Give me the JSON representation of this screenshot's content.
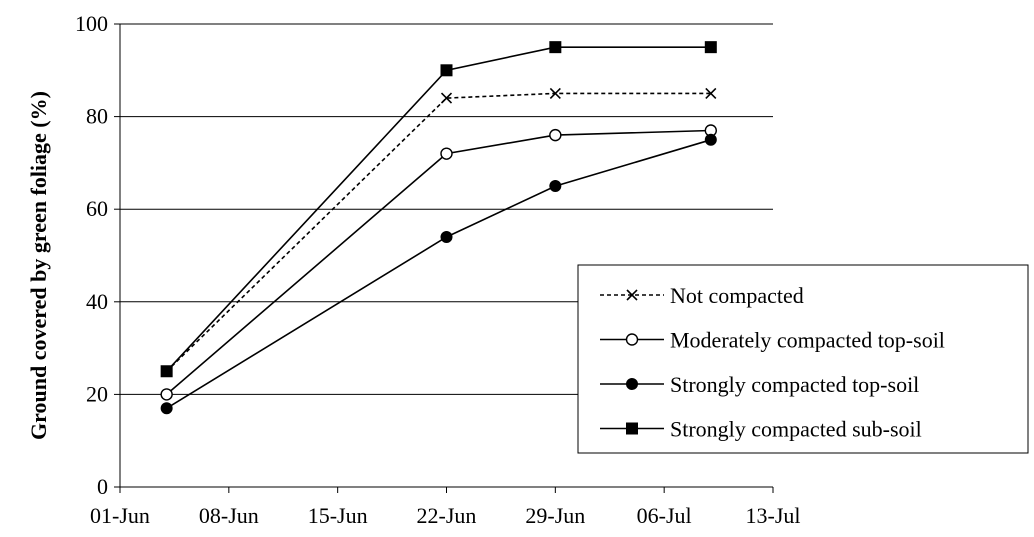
{
  "chart_data": {
    "type": "line",
    "title": "",
    "xlabel": "",
    "ylabel": "Ground covered by green foliage (%)",
    "ylim": [
      0,
      100
    ],
    "yticks": [
      0,
      20,
      40,
      60,
      80,
      100
    ],
    "xlim": [
      "2024-06-01",
      "2024-07-13"
    ],
    "xticks": [
      {
        "date": "2024-06-01",
        "label": "01-Jun"
      },
      {
        "date": "2024-06-08",
        "label": "08-Jun"
      },
      {
        "date": "2024-06-15",
        "label": "15-Jun"
      },
      {
        "date": "2024-06-22",
        "label": "22-Jun"
      },
      {
        "date": "2024-06-29",
        "label": "29-Jun"
      },
      {
        "date": "2024-07-06",
        "label": "06-Jul"
      },
      {
        "date": "2024-07-13",
        "label": "13-Jul"
      }
    ],
    "grid": "horizontal",
    "legend_position": "bottom-right",
    "series": [
      {
        "name": "Not compacted",
        "marker": "x",
        "line_style": "dotted",
        "x": [
          "2024-06-04",
          "2024-06-22",
          "2024-06-29",
          "2024-07-09"
        ],
        "y": [
          25,
          84,
          85,
          85
        ]
      },
      {
        "name": "Moderately compacted top-soil",
        "marker": "open-circle",
        "line_style": "solid",
        "x": [
          "2024-06-04",
          "2024-06-22",
          "2024-06-29",
          "2024-07-09"
        ],
        "y": [
          20,
          72,
          76,
          77
        ]
      },
      {
        "name": "Strongly compacted top-soil",
        "marker": "filled-circle",
        "line_style": "solid",
        "x": [
          "2024-06-04",
          "2024-06-22",
          "2024-06-29",
          "2024-07-09"
        ],
        "y": [
          17,
          54,
          65,
          75
        ]
      },
      {
        "name": "Strongly compacted sub-soil",
        "marker": "filled-square",
        "line_style": "solid",
        "x": [
          "2024-06-04",
          "2024-06-22",
          "2024-06-29",
          "2024-07-09"
        ],
        "y": [
          25,
          90,
          95,
          95
        ]
      }
    ]
  }
}
